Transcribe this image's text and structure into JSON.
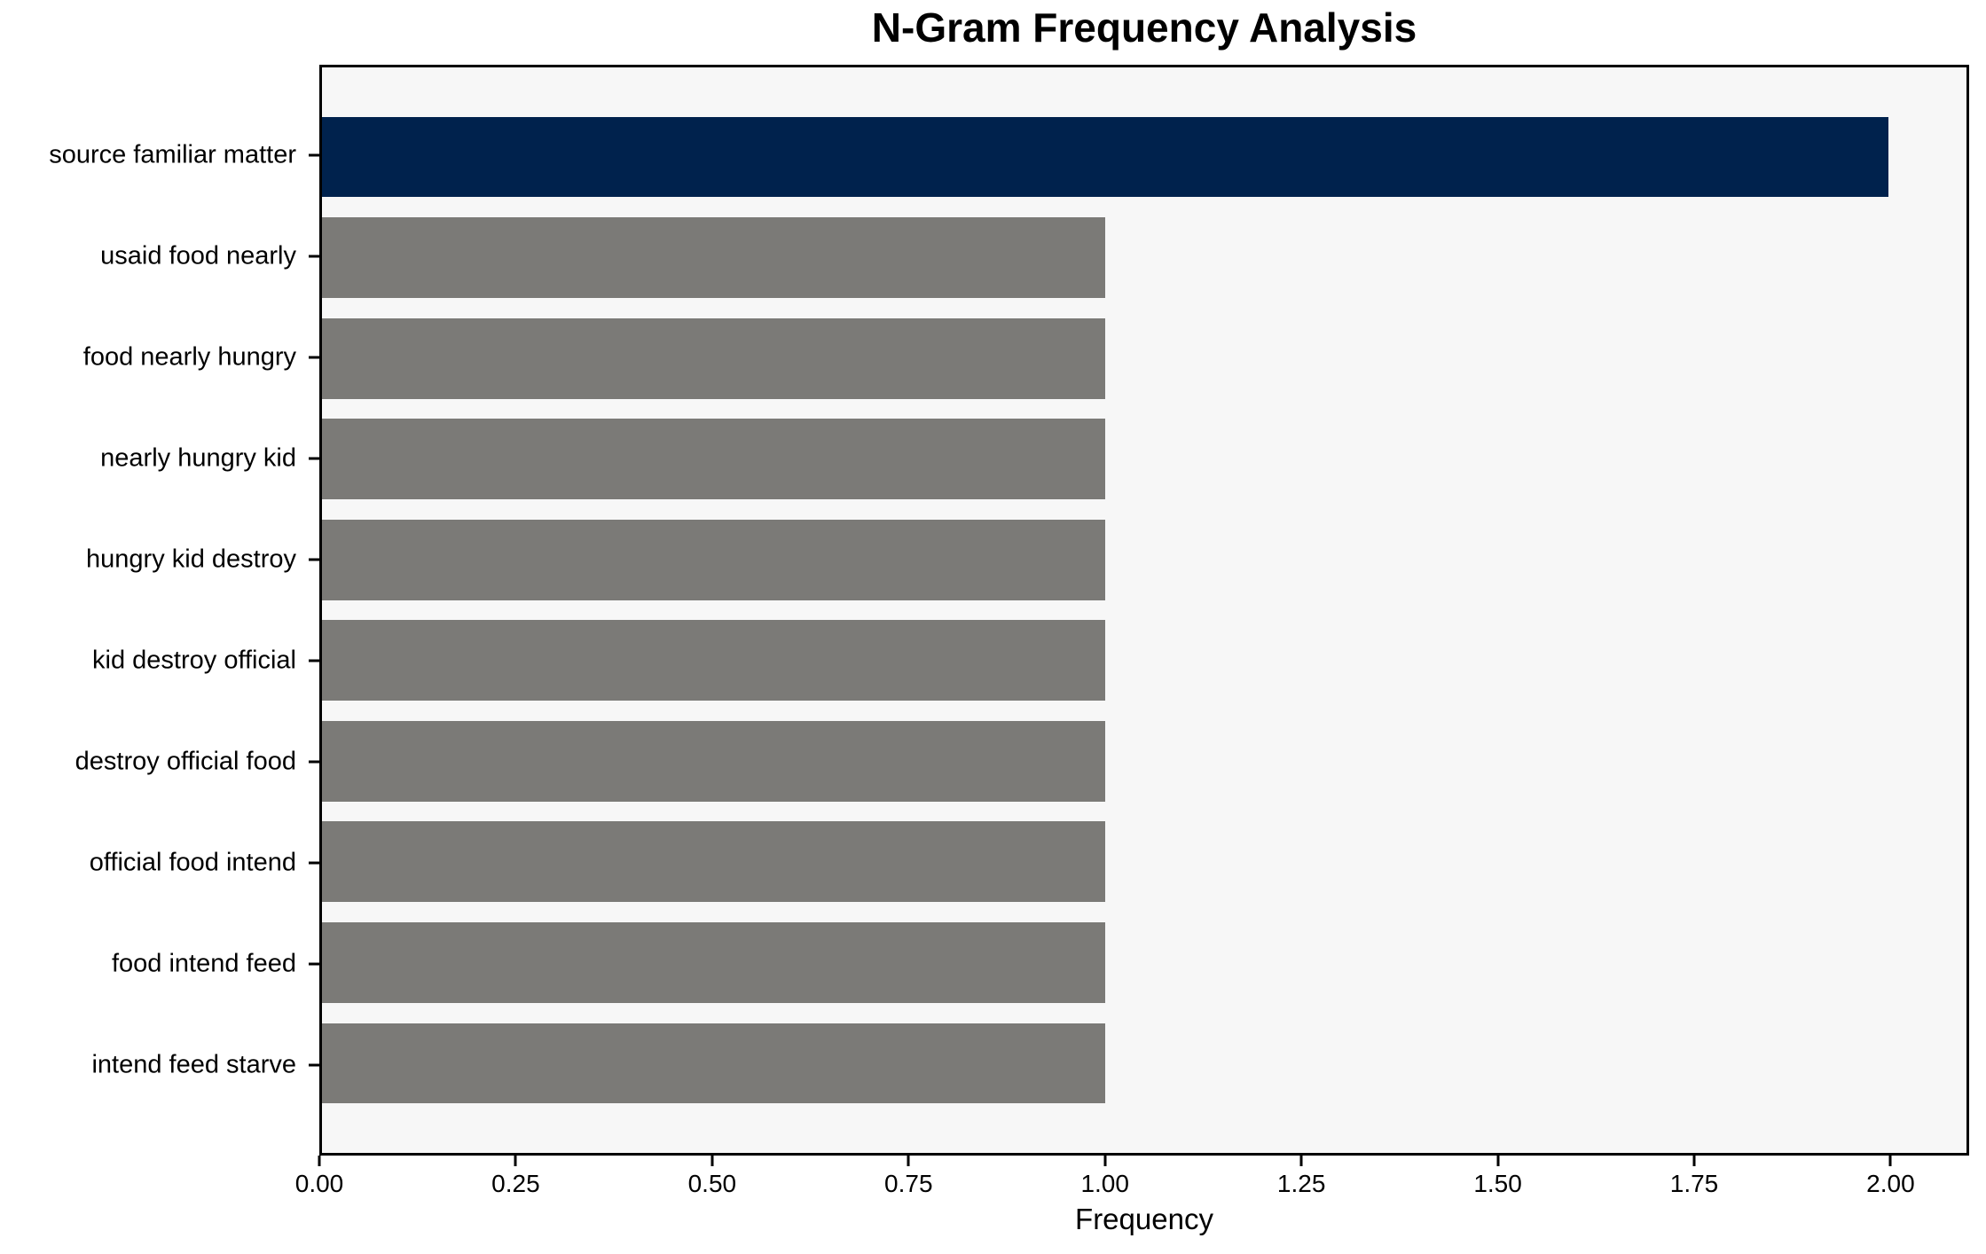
{
  "chart_data": {
    "type": "bar",
    "orientation": "horizontal",
    "title": "N-Gram Frequency Analysis",
    "xlabel": "Frequency",
    "ylabel": "",
    "categories": [
      "source familiar matter",
      "usaid food nearly",
      "food nearly hungry",
      "nearly hungry kid",
      "hungry kid destroy",
      "kid destroy official",
      "destroy official food",
      "official food intend",
      "food intend feed",
      "intend feed starve"
    ],
    "values": [
      2,
      1,
      1,
      1,
      1,
      1,
      1,
      1,
      1,
      1
    ],
    "bar_colors": [
      "#00224d",
      "#7b7a77",
      "#7b7a77",
      "#7b7a77",
      "#7b7a77",
      "#7b7a77",
      "#7b7a77",
      "#7b7a77",
      "#7b7a77",
      "#7b7a77"
    ],
    "xlim": [
      0,
      2.1
    ],
    "xtick_values": [
      0,
      0.25,
      0.5,
      0.75,
      1.0,
      1.25,
      1.5,
      1.75,
      2.0
    ],
    "xtick_labels": [
      "0.00",
      "0.25",
      "0.50",
      "0.75",
      "1.00",
      "1.25",
      "1.50",
      "1.75",
      "2.00"
    ],
    "grid": false,
    "legend": null,
    "colors": {
      "highlight": "#00224d",
      "default": "#7b7a77",
      "plot_background": "#f7f7f7",
      "figure_background": "#ffffff",
      "spine": "#000000",
      "text": "#000000"
    }
  }
}
